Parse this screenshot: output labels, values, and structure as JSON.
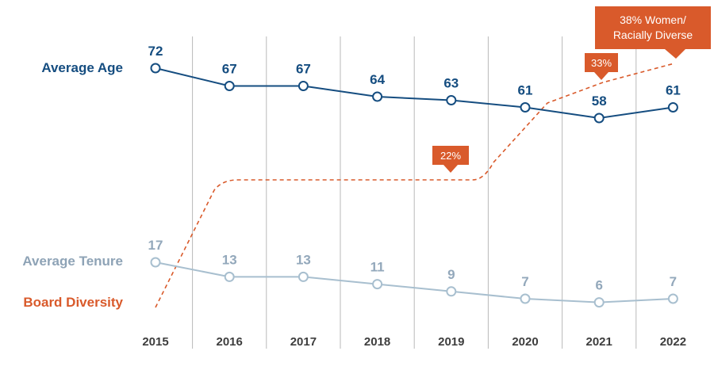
{
  "chart_data": {
    "type": "line",
    "categories": [
      "2015",
      "2016",
      "2017",
      "2018",
      "2019",
      "2020",
      "2021",
      "2022"
    ],
    "series": [
      {
        "name": "Average Age",
        "values": [
          72,
          67,
          67,
          64,
          63,
          61,
          58,
          61
        ],
        "color": "#154d80",
        "style": "solid-with-markers"
      },
      {
        "name": "Average Tenure",
        "values": [
          17,
          13,
          13,
          11,
          9,
          7,
          6,
          7
        ],
        "color": "#a8bfcf",
        "style": "solid-with-markers"
      },
      {
        "name": "Board Diversity",
        "values": [
          null,
          null,
          null,
          null,
          22,
          null,
          33,
          38
        ],
        "color": "#d95a2b",
        "style": "dashed"
      }
    ],
    "callouts": [
      {
        "text": "22%",
        "year": "2019"
      },
      {
        "text": "33%",
        "year": "2021"
      },
      {
        "text_lines": [
          "38% Women/",
          "Racially Diverse"
        ],
        "year": "2022"
      }
    ],
    "grid": "vertical-only",
    "legend": "left"
  }
}
